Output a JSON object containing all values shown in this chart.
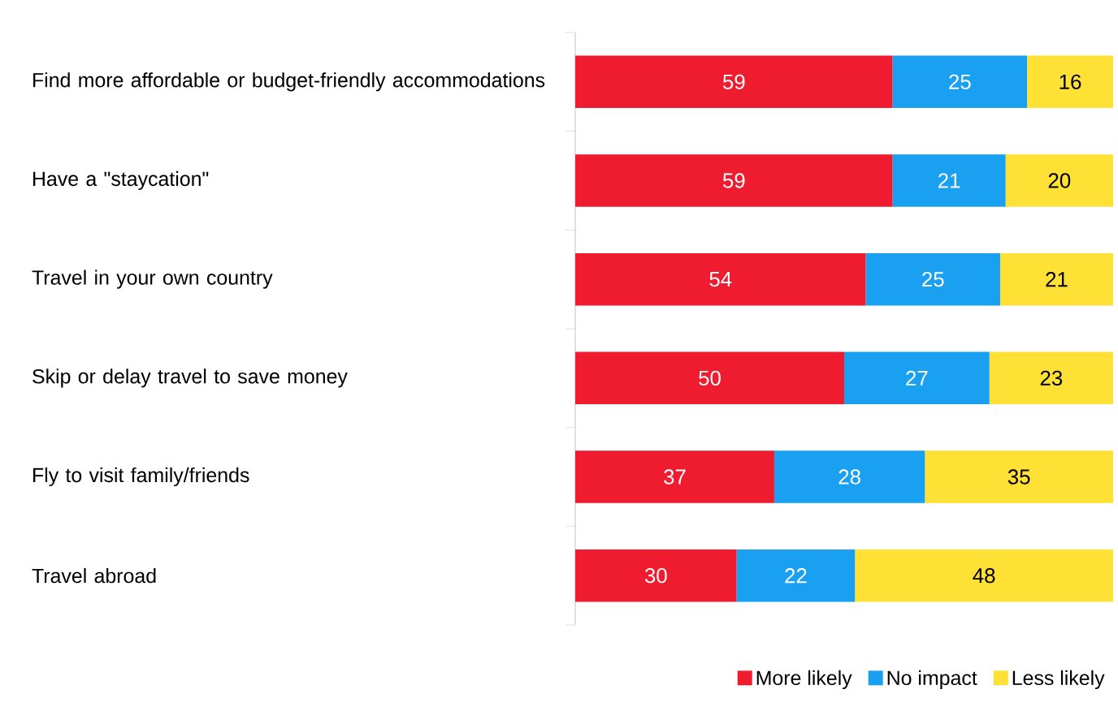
{
  "chart_data": {
    "type": "bar",
    "orientation": "horizontal",
    "stacked": true,
    "categories": [
      "Find more affordable or budget-friendly accommodations",
      "Have a \"staycation\"",
      "Travel in your own country",
      "Skip or delay travel to save money",
      "Fly to visit family/friends",
      "Travel abroad"
    ],
    "series": [
      {
        "name": "More likely",
        "color": "#ee1c2e",
        "values": [
          59,
          59,
          54,
          50,
          37,
          30
        ]
      },
      {
        "name": "No impact",
        "color": "#1aa0f0",
        "values": [
          25,
          21,
          25,
          27,
          28,
          22
        ]
      },
      {
        "name": "Less likely",
        "color": "#ffe135",
        "values": [
          16,
          20,
          21,
          23,
          35,
          48
        ]
      }
    ],
    "tick_labels": "y",
    "data_labels": true,
    "legend": "bottom right"
  }
}
